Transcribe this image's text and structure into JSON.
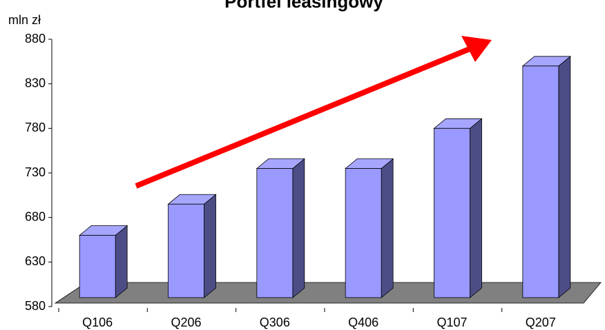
{
  "chart_data": {
    "type": "bar3d",
    "title": "Portfel leasingowy",
    "y_label": "mln zł",
    "categories": [
      "Q106",
      "Q206",
      "Q306",
      "Q406",
      "Q107",
      "Q207"
    ],
    "values": [
      660,
      695,
      735,
      735,
      780,
      850
    ],
    "color": "#9999ff",
    "side_color": "#4d4d86",
    "top_color": "#a6a6ff",
    "floor_color": "#808080",
    "ylim": [
      580,
      880
    ],
    "yticks": [
      580,
      630,
      680,
      730,
      780,
      830,
      880
    ]
  }
}
